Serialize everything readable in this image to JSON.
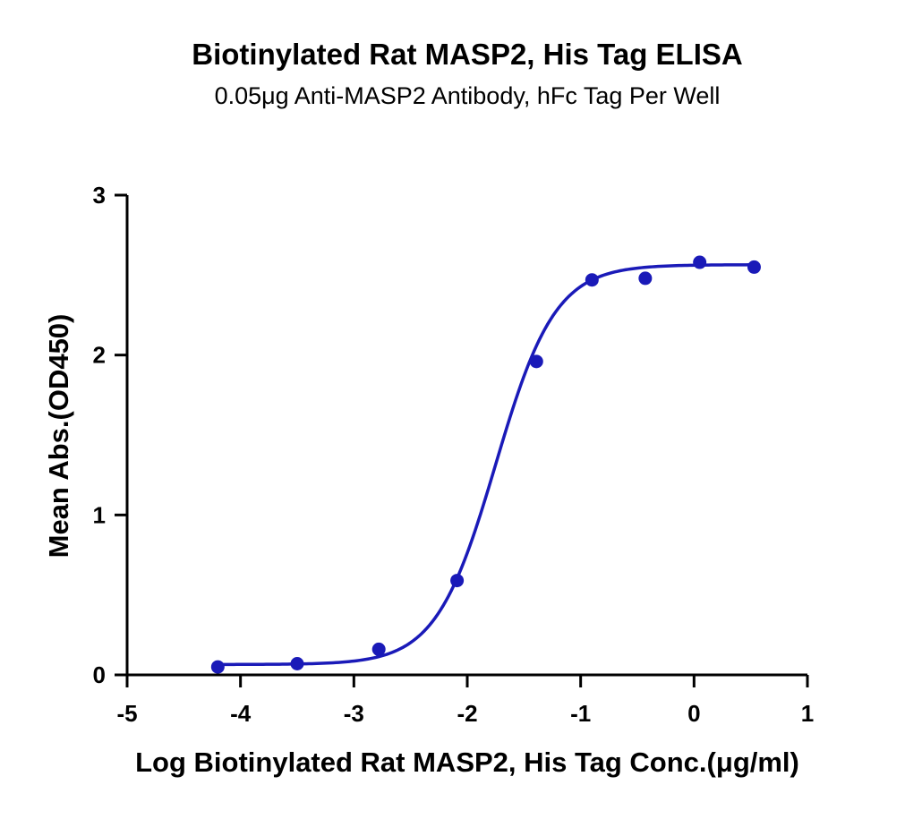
{
  "chart_data": {
    "type": "scatter",
    "title": "Biotinylated Rat MASP2, His Tag ELISA",
    "subtitle": "0.05μg Anti-MASP2 Antibody, hFc Tag Per Well",
    "xlabel": "Log Biotinylated Rat MASP2, His Tag Conc.(μg/ml)",
    "ylabel": "Mean Abs.(OD450)",
    "xlim": [
      -5,
      1
    ],
    "ylim": [
      0,
      3
    ],
    "xticks": [
      -5,
      -4,
      -3,
      -2,
      -1,
      0,
      1
    ],
    "yticks": [
      0,
      1,
      2,
      3
    ],
    "xtick_labels": [
      "-5",
      "-4",
      "-3",
      "-2",
      "-1",
      "0",
      "1"
    ],
    "ytick_labels": [
      "0",
      "1",
      "2",
      "3"
    ],
    "grid": false,
    "color": "#1a1ab8",
    "series": [
      {
        "x": [
          -4.2,
          -3.5,
          -2.78,
          -2.09,
          -1.39,
          -0.9,
          -0.43,
          0.05,
          0.53
        ],
        "y": [
          0.05,
          0.07,
          0.16,
          0.59,
          1.96,
          2.47,
          2.48,
          2.58,
          2.55
        ],
        "fit": {
          "model": "4PL",
          "bottom": 0.065,
          "top": 2.565,
          "logEC50": -1.75,
          "hill": 1.65
        }
      }
    ]
  }
}
